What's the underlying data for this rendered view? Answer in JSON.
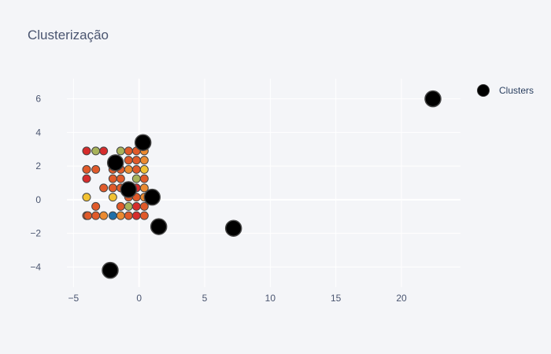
{
  "chart_data": {
    "type": "scatter",
    "title": "Clusterização",
    "xlabel": "",
    "ylabel": "",
    "xlim": [
      -5.5,
      24.5
    ],
    "ylim": [
      -5.2,
      7.2
    ],
    "xticks": [
      -5,
      0,
      5,
      10,
      15,
      20
    ],
    "yticks": [
      -4,
      -2,
      0,
      2,
      4,
      6
    ],
    "xtick_labels": [
      "−5",
      "0",
      "5",
      "10",
      "15",
      "20"
    ],
    "ytick_labels": [
      "−4",
      "−2",
      "0",
      "2",
      "4",
      "6"
    ],
    "grid": true,
    "legend": {
      "placement": "top-right",
      "entries": [
        "Clusters"
      ]
    },
    "point_colors": {
      "red": "#d62c2c",
      "orange_red": "#e05a2a",
      "orange": "#eb8a30",
      "yellow": "#f2c232",
      "olive": "#a8b35a",
      "blue": "#1f6fa8"
    },
    "points": [
      {
        "x": -4,
        "y": 2.9,
        "c": "red"
      },
      {
        "x": -3.3,
        "y": 2.9,
        "c": "olive"
      },
      {
        "x": -2.7,
        "y": 2.9,
        "c": "red"
      },
      {
        "x": -1.4,
        "y": 2.9,
        "c": "olive"
      },
      {
        "x": -0.8,
        "y": 2.9,
        "c": "orange_red"
      },
      {
        "x": -0.2,
        "y": 2.9,
        "c": "orange_red"
      },
      {
        "x": 0.4,
        "y": 2.9,
        "c": "orange"
      },
      {
        "x": -0.8,
        "y": 2.35,
        "c": "orange_red"
      },
      {
        "x": -0.2,
        "y": 2.35,
        "c": "orange_red"
      },
      {
        "x": 0.4,
        "y": 2.35,
        "c": "orange"
      },
      {
        "x": -4,
        "y": 1.8,
        "c": "orange_red"
      },
      {
        "x": -3.3,
        "y": 1.8,
        "c": "orange_red"
      },
      {
        "x": -2.0,
        "y": 1.8,
        "c": "orange_red"
      },
      {
        "x": -1.4,
        "y": 1.8,
        "c": "orange_red"
      },
      {
        "x": -0.8,
        "y": 1.8,
        "c": "orange"
      },
      {
        "x": -0.2,
        "y": 1.8,
        "c": "orange_red"
      },
      {
        "x": 0.4,
        "y": 1.8,
        "c": "yellow"
      },
      {
        "x": -4,
        "y": 1.25,
        "c": "red"
      },
      {
        "x": -2.0,
        "y": 1.25,
        "c": "orange_red"
      },
      {
        "x": -1.4,
        "y": 1.25,
        "c": "orange_red"
      },
      {
        "x": -0.2,
        "y": 1.25,
        "c": "olive"
      },
      {
        "x": 0.4,
        "y": 1.25,
        "c": "orange_red"
      },
      {
        "x": -2.7,
        "y": 0.7,
        "c": "orange_red"
      },
      {
        "x": -2.0,
        "y": 0.7,
        "c": "orange_red"
      },
      {
        "x": -1.4,
        "y": 0.7,
        "c": "orange_red"
      },
      {
        "x": -0.2,
        "y": 0.7,
        "c": "red"
      },
      {
        "x": 0.4,
        "y": 0.7,
        "c": "orange"
      },
      {
        "x": -4,
        "y": 0.15,
        "c": "yellow"
      },
      {
        "x": -2.0,
        "y": 0.15,
        "c": "yellow"
      },
      {
        "x": -0.8,
        "y": 0.15,
        "c": "orange_red"
      },
      {
        "x": -0.2,
        "y": 0.15,
        "c": "orange_red"
      },
      {
        "x": 0.4,
        "y": 0.15,
        "c": "orange"
      },
      {
        "x": -3.3,
        "y": -0.4,
        "c": "orange_red"
      },
      {
        "x": -1.4,
        "y": -0.4,
        "c": "orange_red"
      },
      {
        "x": -0.8,
        "y": -0.4,
        "c": "olive"
      },
      {
        "x": -0.2,
        "y": -0.4,
        "c": "red"
      },
      {
        "x": 0.4,
        "y": -0.4,
        "c": "orange_red"
      },
      {
        "x": -4.0,
        "y": -0.95,
        "c": "orange_red"
      },
      {
        "x": -3.9,
        "y": -0.95,
        "c": "orange_red"
      },
      {
        "x": -3.3,
        "y": -0.95,
        "c": "orange_red"
      },
      {
        "x": -2.7,
        "y": -0.95,
        "c": "orange"
      },
      {
        "x": -2.0,
        "y": -0.95,
        "c": "blue"
      },
      {
        "x": -1.4,
        "y": -0.95,
        "c": "orange"
      },
      {
        "x": -0.8,
        "y": -0.95,
        "c": "orange_red"
      },
      {
        "x": -0.2,
        "y": -0.95,
        "c": "red"
      },
      {
        "x": 0.4,
        "y": -0.95,
        "c": "orange_red"
      }
    ],
    "series": [
      {
        "name": "Clusters",
        "color": "#000000",
        "x": [
          22.4,
          0.3,
          -1.8,
          -0.8,
          1.0,
          1.5,
          7.2,
          -2.2
        ],
        "y": [
          6.0,
          3.4,
          2.2,
          0.6,
          0.15,
          -1.6,
          -1.7,
          -4.2
        ]
      }
    ]
  }
}
